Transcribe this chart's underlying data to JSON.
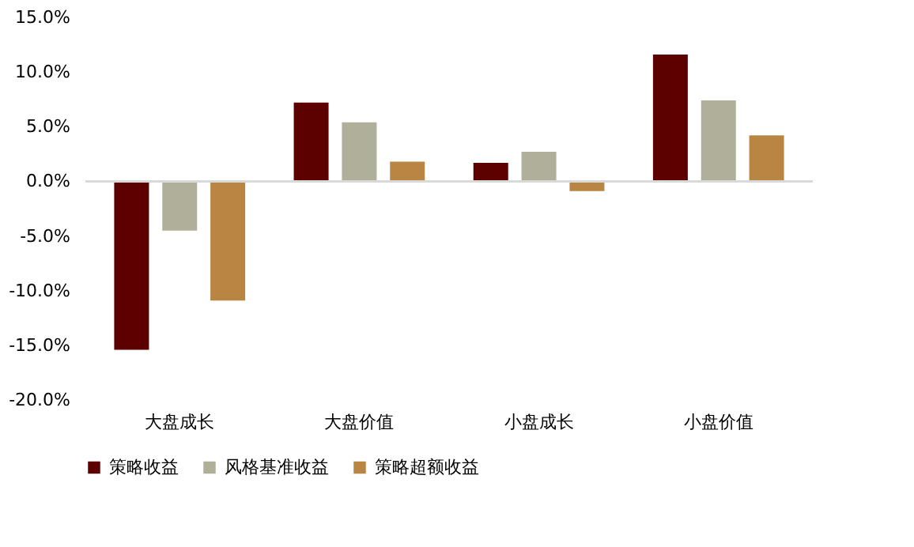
{
  "chart_data": {
    "type": "bar",
    "categories": [
      "大盘成长",
      "大盘价值",
      "小盘成长",
      "小盘价值"
    ],
    "series": [
      {
        "name": "策略收益",
        "color": "#5c0000",
        "values": [
          -15.4,
          7.2,
          1.7,
          11.6
        ]
      },
      {
        "name": "风格基准收益",
        "color": "#b0af9a",
        "values": [
          -4.5,
          5.4,
          2.7,
          7.4
        ]
      },
      {
        "name": "策略超额收益",
        "color": "#b88542",
        "values": [
          -10.9,
          1.8,
          -0.9,
          4.2
        ]
      }
    ],
    "ylim": [
      -20,
      15
    ],
    "yticks": [
      {
        "value": -20,
        "label": "-20.0%"
      },
      {
        "value": -15,
        "label": "-15.0%"
      },
      {
        "value": -10,
        "label": "-10.0%"
      },
      {
        "value": -5,
        "label": "-5.0%"
      },
      {
        "value": 0,
        "label": "0.0%"
      },
      {
        "value": 5,
        "label": "5.0%"
      },
      {
        "value": 10,
        "label": "10.0%"
      },
      {
        "value": 15,
        "label": "15.0%"
      }
    ],
    "ref_lines": [
      {
        "axis": "y",
        "value": 0,
        "color": "#d9d9d9"
      }
    ],
    "grid": false,
    "legend": "bottom"
  }
}
